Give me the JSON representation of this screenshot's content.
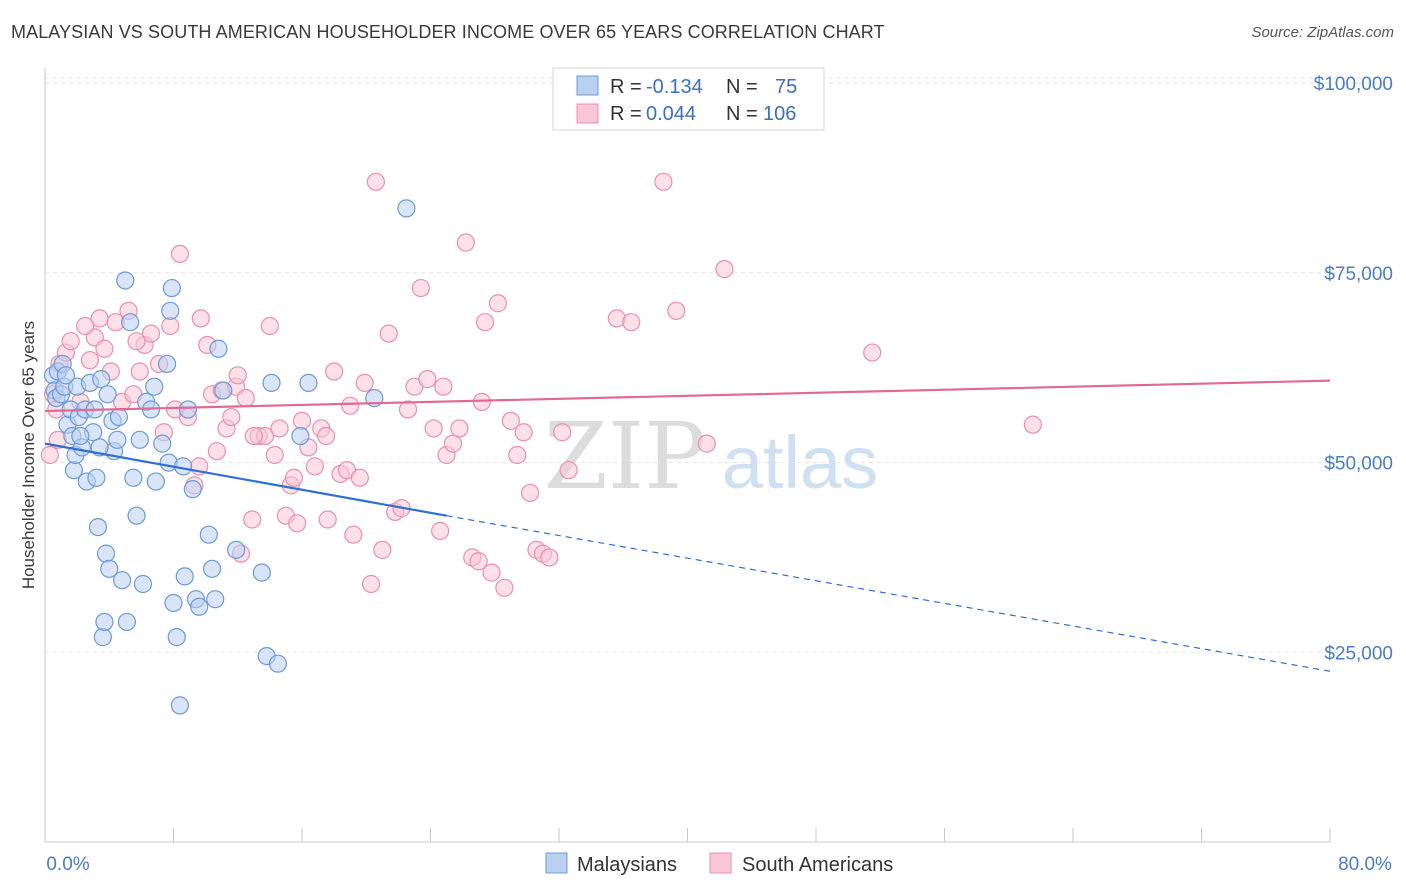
{
  "title": "MALAYSIAN VS SOUTH AMERICAN HOUSEHOLDER INCOME OVER 65 YEARS CORRELATION CHART",
  "source": "Source: ZipAtlas.com",
  "watermark": {
    "zip": "ZIP",
    "atlas": "atlas"
  },
  "legend_top": {
    "rows": [
      {
        "r_label": "R =",
        "r_value": "-0.134",
        "n_label": "N =",
        "n_value": "75",
        "color": "#7aa6e0"
      },
      {
        "r_label": "R =",
        "r_value": "0.044",
        "n_label": "N =",
        "n_value": "106",
        "color": "#f2a0bb"
      }
    ]
  },
  "legend_bottom": {
    "items": [
      {
        "label": "Malaysians",
        "color": "#7aa6e0"
      },
      {
        "label": "South Americans",
        "color": "#f2a0bb"
      }
    ]
  },
  "colors": {
    "blue_fill": "#b9d0f0",
    "blue_stroke": "#6d9ad6",
    "blue_line": "#2f6fce",
    "pink_fill": "#f8c6d6",
    "pink_stroke": "#ec8fb0",
    "pink_line": "#e06a94",
    "grid": "#e2e2e2",
    "tick_text": "#4a7cc9"
  },
  "chart_data": {
    "type": "scatter",
    "title": "MALAYSIAN VS SOUTH AMERICAN HOUSEHOLDER INCOME OVER 65 YEARS CORRELATION CHART",
    "xlabel": "",
    "ylabel": "Householder Income Over 65 years",
    "xlim": [
      0,
      80
    ],
    "ylim": [
      0,
      102000
    ],
    "x_tick_labels": [
      "0.0%",
      "80.0%"
    ],
    "y_ticks": [
      25000,
      50000,
      75000,
      100000
    ],
    "y_tick_labels": [
      "$25,000",
      "$50,000",
      "$75,000",
      "$100,000"
    ],
    "grid": true,
    "legend_position": "top-center",
    "series": [
      {
        "name": "Malaysians",
        "points": [
          [
            0.5,
            61.5
          ],
          [
            0.6,
            59.5
          ],
          [
            0.7,
            58.5
          ],
          [
            0.8,
            62
          ],
          [
            1.0,
            59
          ],
          [
            1.1,
            63
          ],
          [
            1.2,
            60
          ],
          [
            1.4,
            55
          ],
          [
            1.6,
            57
          ],
          [
            1.7,
            53.5
          ],
          [
            1.8,
            49
          ],
          [
            1.9,
            51
          ],
          [
            2.0,
            60
          ],
          [
            2.1,
            56
          ],
          [
            2.3,
            52
          ],
          [
            2.5,
            57
          ],
          [
            2.6,
            47.5
          ],
          [
            2.8,
            60.5
          ],
          [
            3.0,
            54
          ],
          [
            3.1,
            57
          ],
          [
            3.2,
            48
          ],
          [
            3.3,
            41.5
          ],
          [
            3.5,
            61
          ],
          [
            3.6,
            27
          ],
          [
            3.7,
            29
          ],
          [
            3.8,
            38
          ],
          [
            4.0,
            36
          ],
          [
            4.2,
            55.5
          ],
          [
            4.3,
            51.5
          ],
          [
            4.5,
            53
          ],
          [
            4.8,
            34.5
          ],
          [
            5.0,
            74
          ],
          [
            5.1,
            29
          ],
          [
            5.3,
            68.5
          ],
          [
            5.5,
            48
          ],
          [
            5.7,
            43
          ],
          [
            5.9,
            53
          ],
          [
            6.1,
            34
          ],
          [
            6.3,
            58
          ],
          [
            6.6,
            57
          ],
          [
            6.9,
            47.5
          ],
          [
            7.3,
            52.5
          ],
          [
            7.6,
            63
          ],
          [
            7.7,
            50
          ],
          [
            7.8,
            70
          ],
          [
            7.9,
            73
          ],
          [
            8.0,
            31.5
          ],
          [
            8.2,
            27
          ],
          [
            8.4,
            18
          ],
          [
            8.6,
            49.5
          ],
          [
            8.7,
            35
          ],
          [
            8.9,
            57
          ],
          [
            9.2,
            46.5
          ],
          [
            9.4,
            32
          ],
          [
            9.6,
            31
          ],
          [
            10.2,
            40.5
          ],
          [
            10.4,
            36
          ],
          [
            10.6,
            32
          ],
          [
            10.8,
            65
          ],
          [
            11.1,
            59.5
          ],
          [
            11.9,
            38.5
          ],
          [
            13.5,
            35.5
          ],
          [
            13.8,
            24.5
          ],
          [
            14.1,
            60.5
          ],
          [
            14.5,
            23.5
          ],
          [
            15.9,
            53.5
          ],
          [
            16.4,
            60.5
          ],
          [
            20.5,
            58.5
          ],
          [
            22.5,
            83.5
          ],
          [
            3.4,
            52
          ],
          [
            1.3,
            61.5
          ],
          [
            2.2,
            53.5
          ],
          [
            4.6,
            56
          ],
          [
            6.8,
            60
          ],
          [
            3.9,
            59
          ]
        ]
      },
      {
        "name": "South Americans",
        "points": [
          [
            0.3,
            51
          ],
          [
            0.5,
            59
          ],
          [
            0.7,
            57
          ],
          [
            0.9,
            63
          ],
          [
            1.3,
            64.5
          ],
          [
            1.6,
            66
          ],
          [
            2.2,
            58
          ],
          [
            2.8,
            63.5
          ],
          [
            3.1,
            66.5
          ],
          [
            3.4,
            69
          ],
          [
            3.7,
            65
          ],
          [
            4.1,
            62
          ],
          [
            4.4,
            68.5
          ],
          [
            4.8,
            58
          ],
          [
            5.2,
            70
          ],
          [
            5.5,
            59
          ],
          [
            5.9,
            62
          ],
          [
            6.2,
            65.5
          ],
          [
            6.6,
            67
          ],
          [
            7.1,
            63
          ],
          [
            7.4,
            54
          ],
          [
            7.8,
            68
          ],
          [
            8.1,
            57
          ],
          [
            8.4,
            77.5
          ],
          [
            8.9,
            56
          ],
          [
            9.3,
            47
          ],
          [
            9.7,
            69
          ],
          [
            10.1,
            65.5
          ],
          [
            10.4,
            59
          ],
          [
            10.7,
            51.5
          ],
          [
            11.0,
            59.5
          ],
          [
            11.3,
            54.5
          ],
          [
            11.6,
            56
          ],
          [
            11.9,
            60
          ],
          [
            12.2,
            38
          ],
          [
            12.5,
            58.5
          ],
          [
            12.9,
            42.5
          ],
          [
            13.3,
            53.5
          ],
          [
            13.7,
            53.5
          ],
          [
            14.0,
            68
          ],
          [
            14.3,
            51
          ],
          [
            14.6,
            54.5
          ],
          [
            15.0,
            43
          ],
          [
            15.3,
            47
          ],
          [
            15.7,
            42
          ],
          [
            16.0,
            55.5
          ],
          [
            16.4,
            52
          ],
          [
            16.8,
            49.5
          ],
          [
            17.2,
            54.5
          ],
          [
            17.6,
            42.5
          ],
          [
            18.0,
            62
          ],
          [
            18.4,
            48.5
          ],
          [
            18.8,
            49
          ],
          [
            19.2,
            40.5
          ],
          [
            19.6,
            48
          ],
          [
            19.9,
            60.5
          ],
          [
            20.3,
            34
          ],
          [
            20.6,
            87
          ],
          [
            21.0,
            38.5
          ],
          [
            21.4,
            67
          ],
          [
            21.8,
            43.5
          ],
          [
            22.2,
            44
          ],
          [
            22.6,
            57
          ],
          [
            23.0,
            60
          ],
          [
            23.4,
            73
          ],
          [
            23.8,
            61
          ],
          [
            24.2,
            54.5
          ],
          [
            24.6,
            41
          ],
          [
            25.0,
            51
          ],
          [
            25.4,
            52.5
          ],
          [
            25.8,
            54.5
          ],
          [
            26.2,
            79
          ],
          [
            26.6,
            37.5
          ],
          [
            27.0,
            37
          ],
          [
            27.4,
            68.5
          ],
          [
            27.8,
            35.5
          ],
          [
            28.2,
            71
          ],
          [
            28.6,
            33.5
          ],
          [
            29.0,
            55.5
          ],
          [
            29.4,
            51
          ],
          [
            29.8,
            54
          ],
          [
            30.2,
            46
          ],
          [
            30.6,
            38.5
          ],
          [
            31.0,
            38
          ],
          [
            31.4,
            37.5
          ],
          [
            32.2,
            54
          ],
          [
            32.6,
            49
          ],
          [
            35.6,
            69
          ],
          [
            36.5,
            68.5
          ],
          [
            38.5,
            87
          ],
          [
            39.3,
            70
          ],
          [
            41.2,
            52.5
          ],
          [
            42.3,
            75.5
          ],
          [
            51.5,
            64.5
          ],
          [
            61.5,
            55
          ],
          [
            2.5,
            68
          ],
          [
            9.6,
            49.5
          ],
          [
            13.0,
            53.5
          ],
          [
            15.5,
            48
          ],
          [
            19.0,
            57.5
          ],
          [
            24.8,
            60
          ],
          [
            0.8,
            53
          ],
          [
            5.7,
            66
          ],
          [
            12.0,
            61.5
          ],
          [
            17.5,
            53.5
          ],
          [
            27.2,
            58
          ]
        ]
      }
    ],
    "trend_lines": [
      {
        "name": "Malaysians",
        "x_start": 0,
        "y_start": 52500,
        "x_solid_end": 25,
        "y_solid_end": 43000,
        "x_end": 80,
        "y_end": 22500
      },
      {
        "name": "South Americans",
        "x_start": 0,
        "y_start": 56800,
        "x_end": 80,
        "y_end": 60800
      }
    ]
  }
}
